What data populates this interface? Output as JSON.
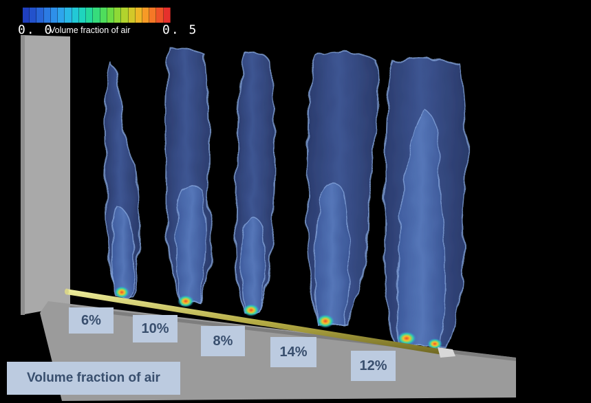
{
  "colorbar": {
    "min_label": "0. 0",
    "max_label": "0. 5",
    "title": "Volume fraction of air",
    "colors": [
      "#1f3fbf",
      "#2352cc",
      "#2866d8",
      "#2c7be3",
      "#2e90ea",
      "#2ea5ec",
      "#2ab9e6",
      "#22c9d6",
      "#1fd4bd",
      "#25d99d",
      "#36dc7c",
      "#4fdd5c",
      "#6ddc44",
      "#8fd936",
      "#b2d32d",
      "#d3c829",
      "#eeb727",
      "#f79a26",
      "#f57826",
      "#ef5328",
      "#e6302c"
    ]
  },
  "plumes": [
    {
      "label": "6%",
      "value": 6
    },
    {
      "label": "10%",
      "value": 10
    },
    {
      "label": "8%",
      "value": 8
    },
    {
      "label": "14%",
      "value": 14
    },
    {
      "label": "12%",
      "value": 12
    }
  ],
  "legend_label": "Volume fraction of air"
}
